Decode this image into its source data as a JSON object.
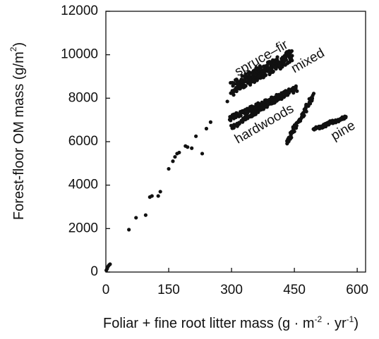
{
  "chart_data": {
    "type": "scatter",
    "xlabel": "Foliar + fine root litter mass (g · m",
    "xlabel_unit_parts": [
      "-2",
      " · yr",
      "-1",
      ")"
    ],
    "ylabel": "Forest-floor OM mass (g/m",
    "ylabel_unit_parts": [
      "2",
      ")"
    ],
    "xlim": [
      0,
      620
    ],
    "ylim": [
      0,
      12000
    ],
    "x_ticks": [
      0,
      150,
      300,
      450,
      600
    ],
    "y_ticks": [
      0,
      2000,
      4000,
      6000,
      8000,
      10000,
      12000
    ],
    "x_tick_labels": [
      "0",
      "150",
      "300",
      "450",
      "600"
    ],
    "y_tick_labels": [
      "0",
      "2000",
      "4000",
      "6000",
      "8000",
      "10000",
      "12000"
    ],
    "grid": false,
    "marker_color": "#111111",
    "annotations": [
      {
        "text": "spruce–fir",
        "x": 315,
        "y": 9000,
        "rotation": -30
      },
      {
        "text": "mixed",
        "x": 450,
        "y": 9150,
        "rotation": -30
      },
      {
        "text": "hardwoods",
        "x": 315,
        "y": 5900,
        "rotation": -30
      },
      {
        "text": "pine",
        "x": 545,
        "y": 6050,
        "rotation": -30
      }
    ],
    "scatter_points": [
      [
        1,
        80
      ],
      [
        3,
        150
      ],
      [
        4,
        220
      ],
      [
        6,
        280
      ],
      [
        8,
        330
      ],
      [
        10,
        360
      ],
      [
        55,
        1950
      ],
      [
        72,
        2500
      ],
      [
        95,
        2620
      ],
      [
        105,
        3450
      ],
      [
        110,
        3500
      ],
      [
        125,
        3500
      ],
      [
        130,
        3700
      ],
      [
        150,
        4750
      ],
      [
        160,
        5100
      ],
      [
        165,
        5300
      ],
      [
        170,
        5450
      ],
      [
        175,
        5500
      ],
      [
        190,
        5800
      ],
      [
        195,
        5750
      ],
      [
        205,
        5700
      ],
      [
        230,
        5450
      ],
      [
        215,
        6250
      ],
      [
        240,
        6600
      ],
      [
        250,
        6900
      ],
      [
        290,
        7850
      ],
      [
        305,
        8150
      ]
    ],
    "series": [
      {
        "x_start": 300,
        "x_end": 445,
        "y_start": 8500,
        "y_end": 9950,
        "spread": 620,
        "n": 260
      },
      {
        "x_start": 295,
        "x_end": 455,
        "y_start": 7050,
        "y_end": 8450,
        "spread": 260,
        "n": 150
      },
      {
        "x_start": 300,
        "x_end": 430,
        "y_start": 6650,
        "y_end": 8200,
        "spread": 180,
        "n": 90
      },
      {
        "x_start": 430,
        "x_end": 495,
        "y_start": 5900,
        "y_end": 8100,
        "spread": 230,
        "n": 80
      },
      {
        "x_start": 495,
        "x_end": 575,
        "y_start": 6550,
        "y_end": 7150,
        "spread": 160,
        "n": 70
      }
    ]
  }
}
